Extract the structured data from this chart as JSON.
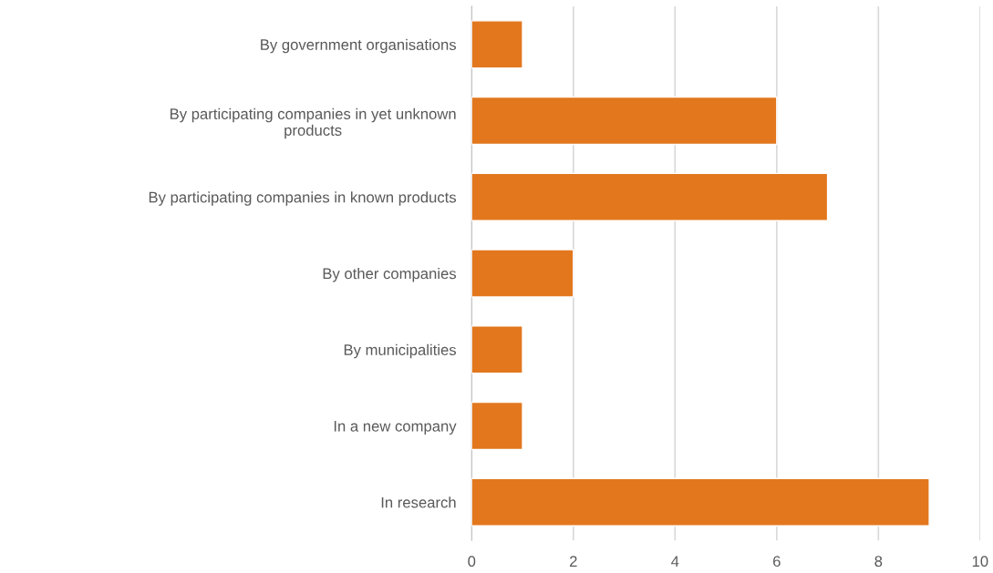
{
  "chart_data": {
    "type": "bar",
    "orientation": "horizontal",
    "categories": [
      "By government organisations",
      "By participating companies in yet unknown\nproducts",
      "By participating companies in known products",
      "By other companies",
      "By municipalities",
      "In a new company",
      "In research"
    ],
    "values": [
      1,
      6,
      7,
      2,
      1,
      1,
      9
    ],
    "color": "#e2771e",
    "xlim": [
      0,
      10
    ],
    "xticks": [
      0,
      2,
      4,
      6,
      8,
      10
    ],
    "grid": "x"
  }
}
